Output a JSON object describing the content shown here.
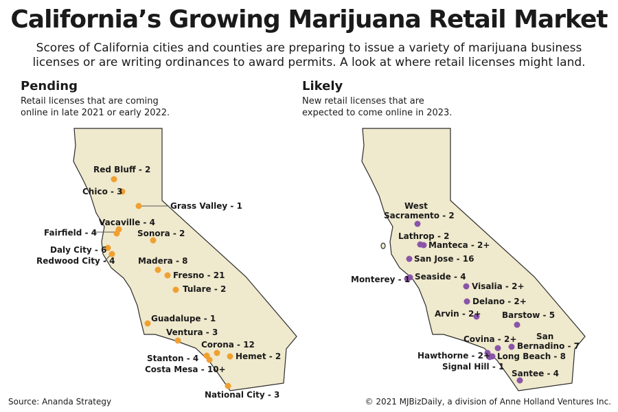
{
  "title": "California’s Growing Marijuana Retail Market",
  "subtitle": "Scores of California cities and counties are preparing to issue a variety of marijuana business licenses or are writing ordinances to award permits. A look at where retail licenses might land.",
  "pending": {
    "heading": "Pending",
    "description": "Retail licenses that are coming online in late 2021 or early 2022.",
    "marker_color": "#f0a030",
    "cities": [
      {
        "label": "Red Bluff - 2"
      },
      {
        "label": "Chico - 3"
      },
      {
        "label": "Grass Valley - 1"
      },
      {
        "label": "Vacaville - 4"
      },
      {
        "label": "Fairfield - 4"
      },
      {
        "label": "Sonora - 2"
      },
      {
        "label": "Daly City - 6"
      },
      {
        "label": "Redwood City - 4"
      },
      {
        "label": "Madera - 8"
      },
      {
        "label": "Fresno - 21"
      },
      {
        "label": "Tulare - 2"
      },
      {
        "label": "Guadalupe - 1"
      },
      {
        "label": "Ventura - 3"
      },
      {
        "label": "Corona - 12"
      },
      {
        "label": "Stanton - 4"
      },
      {
        "label": "Hemet - 2"
      },
      {
        "label": "Costa Mesa - 10+"
      },
      {
        "label": "National City - 3"
      }
    ]
  },
  "likely": {
    "heading": "Likely",
    "description": "New retail licenses that are expected to come online in 2023.",
    "marker_color": "#8a55a8",
    "cities": [
      {
        "label": "West"
      },
      {
        "label": "Sacramento - 2"
      },
      {
        "label": "Lathrop - 2"
      },
      {
        "label": "Manteca - 2+"
      },
      {
        "label": "San Jose - 16"
      },
      {
        "label": "Monterey - 1"
      },
      {
        "label": "Seaside - 4"
      },
      {
        "label": "Visalia - 2+"
      },
      {
        "label": "Delano - 2+"
      },
      {
        "label": "Arvin - 2+"
      },
      {
        "label": "Barstow - 5"
      },
      {
        "label": "Covina - 2+"
      },
      {
        "label": "San"
      },
      {
        "label": "Bernadino - 7"
      },
      {
        "label": "Hawthorne - 2+"
      },
      {
        "label": "Long Beach - 8"
      },
      {
        "label": "Signal Hill - 1"
      },
      {
        "label": "Santee - 4"
      }
    ]
  },
  "map_fill": "#efe9cd",
  "map_stroke": "#2a2a2a",
  "source": "Source: Ananda Strategy",
  "copyright": "© 2021 MJBizDaily, a division of Anne Holland Ventures Inc."
}
